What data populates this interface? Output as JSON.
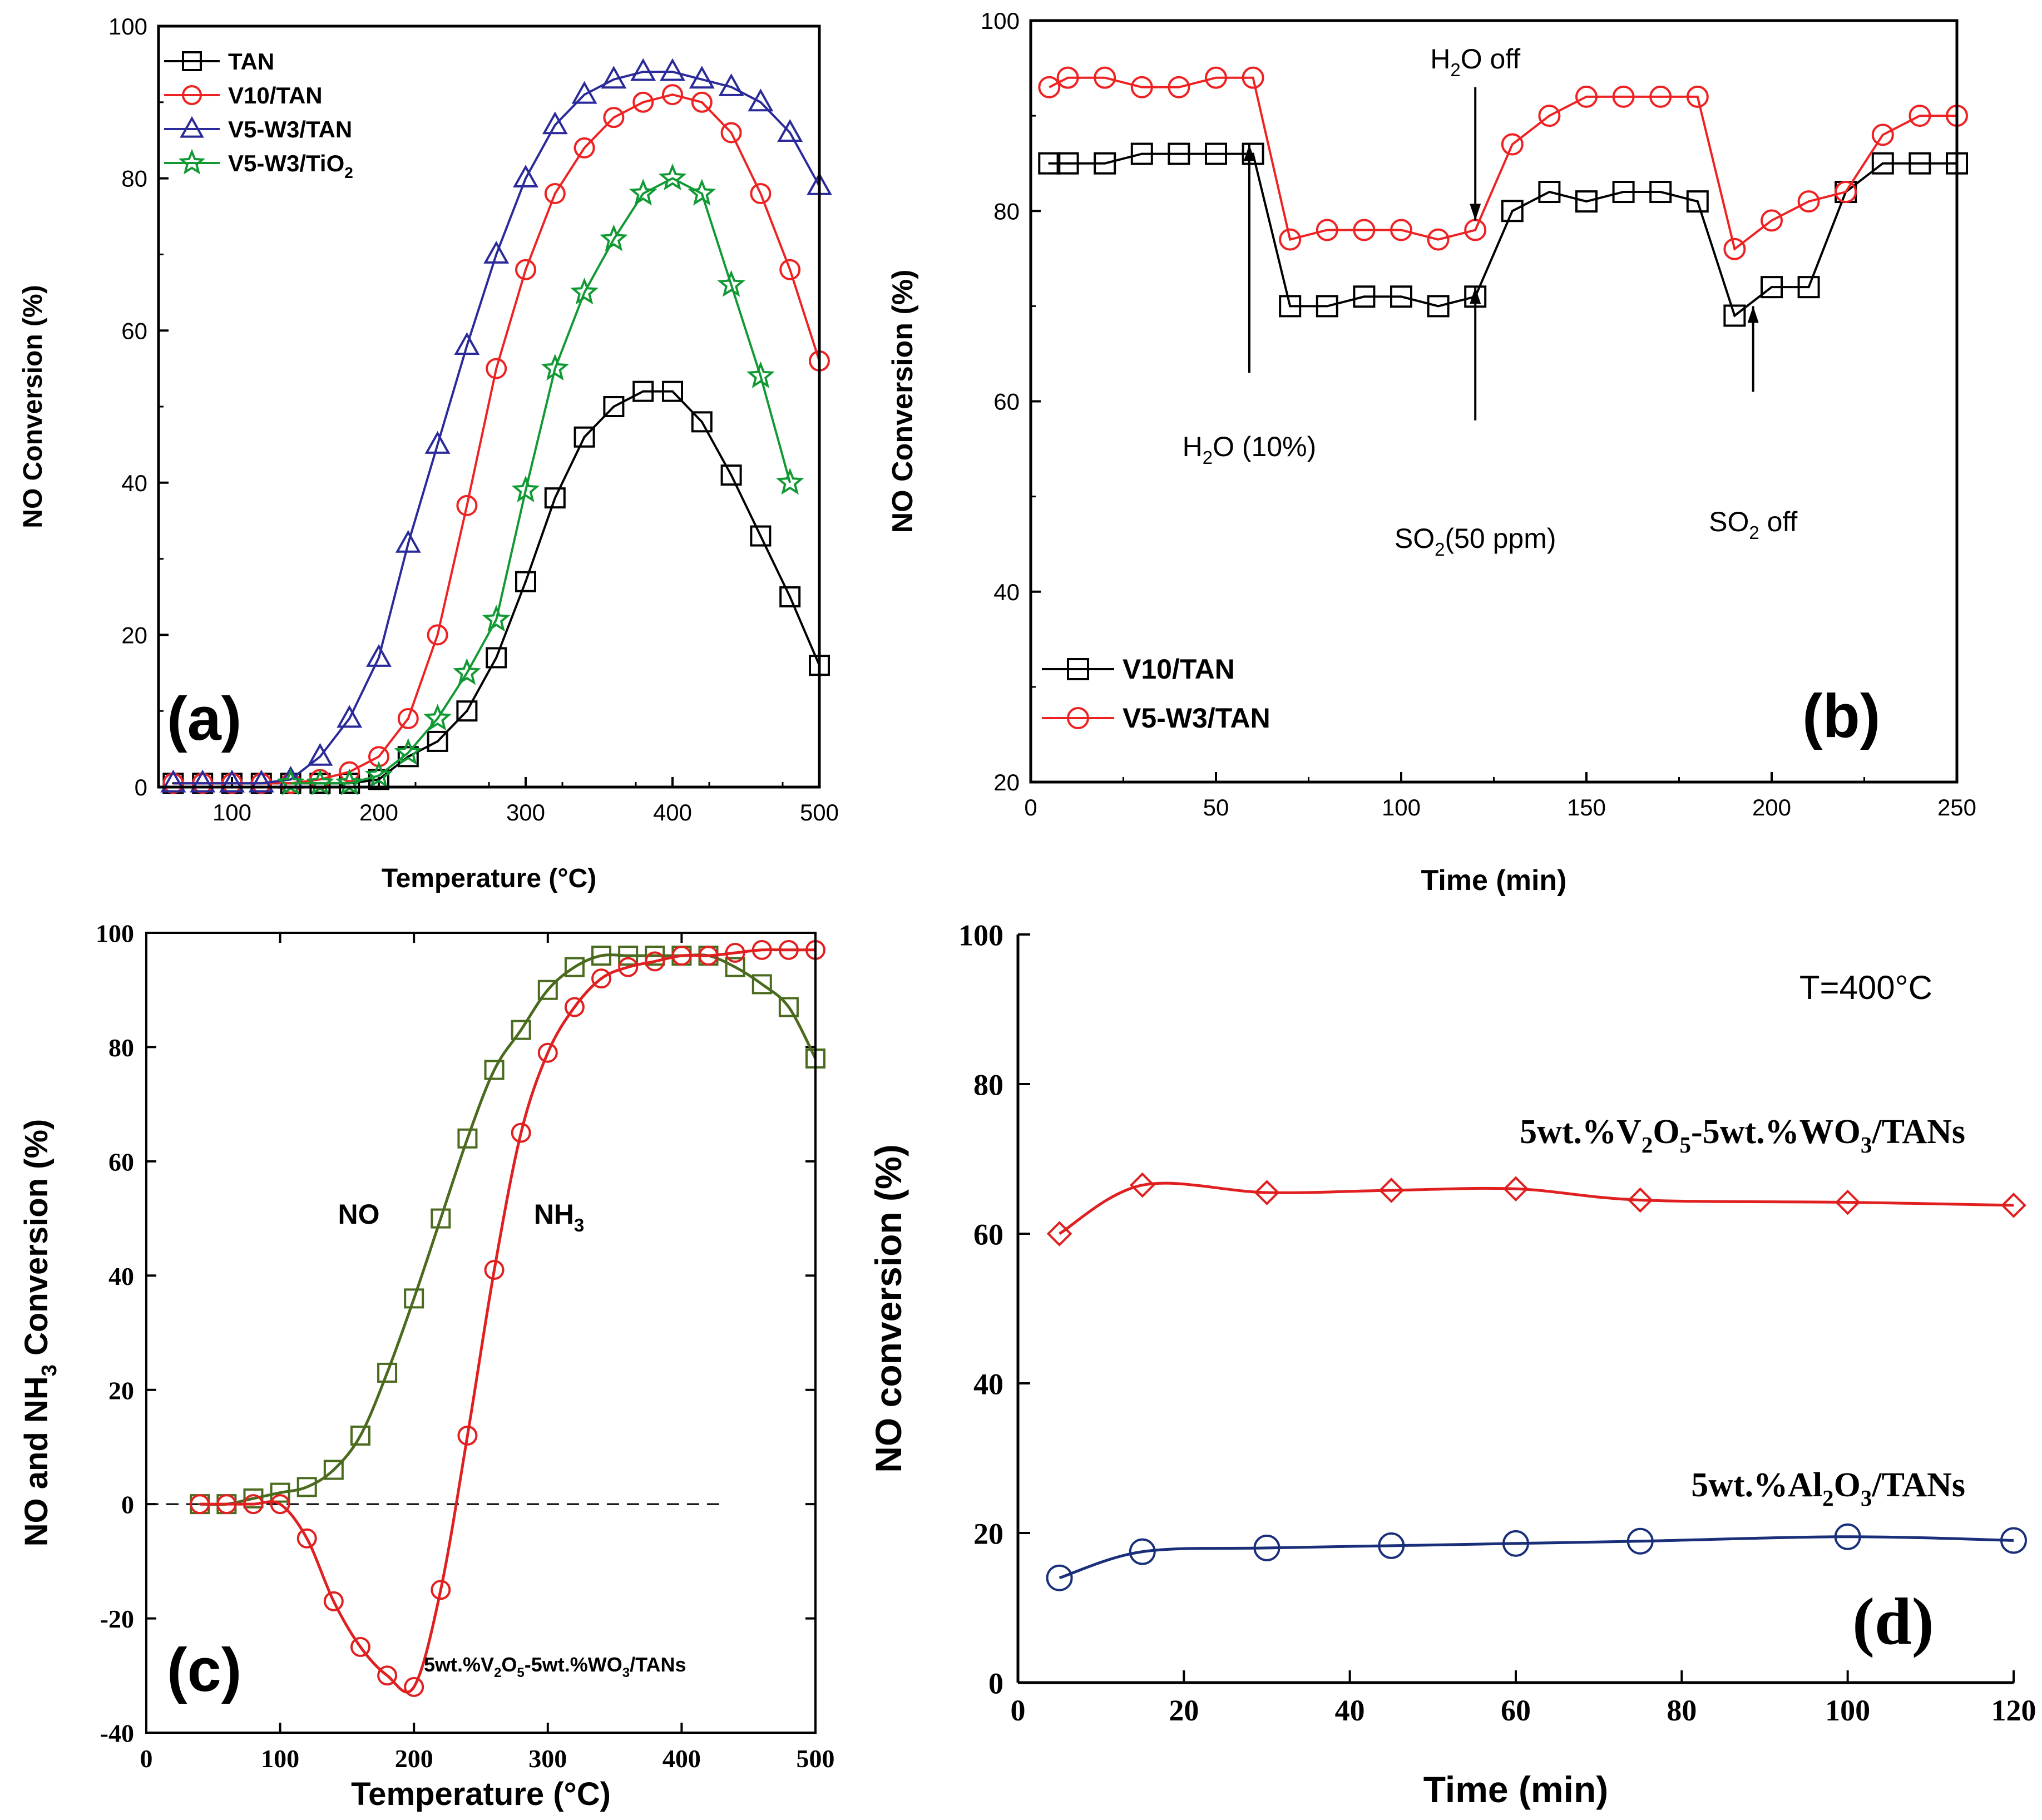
{
  "chart_data": [
    {
      "panel": "a",
      "panel_label": "(a)",
      "type": "line",
      "xlabel": "Temperature (°C)",
      "ylabel": "NO Conversion (%)",
      "xlim": [
        50,
        500
      ],
      "ylim": [
        0,
        100
      ],
      "xticks": [
        100,
        200,
        300,
        400,
        500
      ],
      "yticks": [
        0,
        20,
        40,
        60,
        80,
        100
      ],
      "legend_position": "top-left",
      "series": [
        {
          "name": "TAN",
          "color": "#000000",
          "marker": "square",
          "x": [
            60,
            80,
            100,
            120,
            140,
            160,
            180,
            200,
            220,
            240,
            260,
            280,
            300,
            320,
            340,
            360,
            380,
            400,
            420,
            440,
            460,
            480,
            500
          ],
          "values": [
            0.5,
            0.5,
            0.5,
            0.5,
            0.5,
            0.5,
            0.5,
            1,
            4,
            6,
            10,
            17,
            27,
            38,
            46,
            50,
            52,
            52,
            48,
            41,
            33,
            25,
            16
          ]
        },
        {
          "name": "V10/TAN",
          "color": "#ee2222",
          "marker": "circle",
          "x": [
            60,
            80,
            100,
            120,
            140,
            160,
            180,
            200,
            220,
            240,
            260,
            280,
            300,
            320,
            340,
            360,
            380,
            400,
            420,
            440,
            460,
            480,
            500
          ],
          "values": [
            0.5,
            0.5,
            0.5,
            0.5,
            0.5,
            1,
            2,
            4,
            9,
            20,
            37,
            55,
            68,
            78,
            84,
            88,
            90,
            91,
            90,
            86,
            78,
            68,
            56
          ]
        },
        {
          "name": "V5-W3/TAN",
          "color": "#2a2a9a",
          "marker": "triangle",
          "x": [
            60,
            80,
            100,
            120,
            140,
            160,
            180,
            200,
            220,
            240,
            260,
            280,
            300,
            320,
            340,
            360,
            380,
            400,
            420,
            440,
            460,
            480,
            500
          ],
          "values": [
            0.5,
            0.5,
            0.5,
            0.5,
            1,
            4,
            9,
            17,
            32,
            45,
            58,
            70,
            80,
            87,
            91,
            93,
            94,
            94,
            93,
            92,
            90,
            86,
            79
          ]
        },
        {
          "name": "V5-W3/TiO",
          "name_sub": "2",
          "color": "#119933",
          "marker": "star",
          "x": [
            140,
            160,
            180,
            200,
            220,
            240,
            260,
            280,
            300,
            320,
            340,
            360,
            380,
            400,
            420,
            440,
            460,
            480
          ],
          "values": [
            0.5,
            0.5,
            0.5,
            1.5,
            4.5,
            9,
            15,
            22,
            39,
            55,
            65,
            72,
            78,
            80,
            78,
            66,
            54,
            40
          ]
        }
      ]
    },
    {
      "panel": "b",
      "panel_label": "(b)",
      "type": "line",
      "xlabel": "Time (min)",
      "ylabel": "NO  Conversion (%)",
      "xlim": [
        0,
        250
      ],
      "ylim": [
        20,
        100
      ],
      "xticks": [
        0,
        50,
        100,
        150,
        200,
        250
      ],
      "yticks": [
        20,
        40,
        60,
        80,
        100
      ],
      "legend_position": "bottom-left",
      "series": [
        {
          "name": "V10/TAN",
          "color": "#000000",
          "marker": "square",
          "x": [
            5,
            10,
            20,
            30,
            40,
            50,
            60,
            70,
            80,
            90,
            100,
            110,
            120,
            130,
            140,
            150,
            160,
            170,
            180,
            190,
            200,
            210,
            220,
            230,
            240,
            250
          ],
          "values": [
            85,
            85,
            85,
            86,
            86,
            86,
            86,
            70,
            70,
            71,
            71,
            70,
            71,
            80,
            82,
            81,
            82,
            82,
            81,
            69,
            72,
            72,
            82,
            85,
            85,
            85
          ]
        },
        {
          "name": "V5-W3/TAN",
          "color": "#ee2222",
          "marker": "circle",
          "x": [
            5,
            10,
            20,
            30,
            40,
            50,
            60,
            70,
            80,
            90,
            100,
            110,
            120,
            130,
            140,
            150,
            160,
            170,
            180,
            190,
            200,
            210,
            220,
            230,
            240,
            250
          ],
          "values": [
            93,
            94,
            94,
            93,
            93,
            94,
            94,
            77,
            78,
            78,
            78,
            77,
            78,
            87,
            90,
            92,
            92,
            92,
            92,
            76,
            79,
            81,
            82,
            88,
            90,
            90
          ]
        }
      ],
      "annotations": [
        {
          "pre": "H",
          "sub": "2",
          "post": "O off",
          "x": 120,
          "arrow_from": 93,
          "arrow_to": 79
        },
        {
          "pre": "H",
          "sub": "2",
          "post": "O (10%)",
          "x": 59,
          "arrow_from": 63,
          "arrow_to": 87
        },
        {
          "pre": "SO",
          "sub": "2",
          "post": "(50 ppm)",
          "x": 120,
          "arrow_from": 58,
          "arrow_to": 72
        },
        {
          "pre": "SO",
          "sub": "2",
          "post": " off",
          "x": 195,
          "arrow_from": 61,
          "arrow_to": 70
        }
      ]
    },
    {
      "panel": "c",
      "panel_label": "(c)",
      "type": "line",
      "xlabel": "Temperature (°C)",
      "ylabel": {
        "pre": "NO and NH",
        "sub": "3",
        "post": " Conversion (%)"
      },
      "xlim": [
        0,
        500
      ],
      "ylim": [
        -40,
        100
      ],
      "xticks": [
        0,
        100,
        200,
        300,
        400,
        500
      ],
      "yticks": [
        -40,
        -20,
        0,
        20,
        40,
        60,
        80,
        100
      ],
      "catalyst": {
        "parts": [
          "5wt.%V",
          "2",
          "O",
          "5",
          "-5wt.%WO",
          "3",
          "/TANs"
        ]
      },
      "zero_line": {
        "x_from": 0,
        "x_to": 430
      },
      "series": [
        {
          "name": "NO",
          "color": "#4a6a1e",
          "marker": "square",
          "x": [
            40,
            60,
            80,
            100,
            120,
            140,
            160,
            180,
            200,
            220,
            240,
            260,
            280,
            300,
            320,
            340,
            360,
            380,
            400,
            420,
            440,
            460,
            480,
            500
          ],
          "values": [
            0,
            0,
            1,
            2,
            3,
            6,
            12,
            23,
            36,
            50,
            64,
            76,
            83,
            90,
            94,
            96,
            96,
            96,
            96,
            96,
            94,
            91,
            87,
            78
          ]
        },
        {
          "name": "NH",
          "name_sub": "3",
          "color": "#e02020",
          "marker": "circle",
          "x": [
            40,
            60,
            80,
            100,
            120,
            140,
            160,
            180,
            200,
            220,
            240,
            260,
            280,
            300,
            320,
            340,
            360,
            380,
            400,
            420,
            440,
            460,
            480,
            500
          ],
          "values": [
            0,
            0,
            0,
            0,
            -6,
            -17,
            -25,
            -30,
            -32,
            -15,
            12,
            41,
            65,
            79,
            87,
            92,
            94,
            95,
            96,
            96,
            96.5,
            97,
            97,
            97
          ]
        }
      ]
    },
    {
      "panel": "d",
      "panel_label": "(d)",
      "type": "line",
      "xlabel": "Time (min)",
      "ylabel": "NO conversion (%)",
      "xlim": [
        0,
        120
      ],
      "ylim": [
        0,
        100
      ],
      "xticks": [
        0,
        20,
        40,
        60,
        80,
        100,
        120
      ],
      "yticks": [
        0,
        20,
        40,
        60,
        80,
        100
      ],
      "temperature_note": "T=400°C",
      "series": [
        {
          "name": "5wt.%V2O5-5wt.%WO3/TANs",
          "label_parts": [
            "5wt.%V",
            "2",
            "O",
            "5",
            "-5wt.%WO",
            "3",
            "/TANs"
          ],
          "color": "#e02020",
          "marker": "diamond",
          "x": [
            5,
            15,
            30,
            45,
            60,
            75,
            100,
            120
          ],
          "values": [
            60,
            66.5,
            65.5,
            65.8,
            66,
            64.5,
            64.2,
            63.8
          ]
        },
        {
          "name": "5wt.%Al2O3/TANs",
          "label_parts": [
            "5wt.%Al",
            "2",
            "O",
            "3",
            "/TANs"
          ],
          "color": "#1a2f7a",
          "marker": "circle",
          "x": [
            5,
            15,
            30,
            45,
            60,
            75,
            100,
            120
          ],
          "values": [
            14,
            17.5,
            18,
            18.3,
            18.6,
            18.9,
            19.5,
            19
          ]
        }
      ]
    }
  ]
}
